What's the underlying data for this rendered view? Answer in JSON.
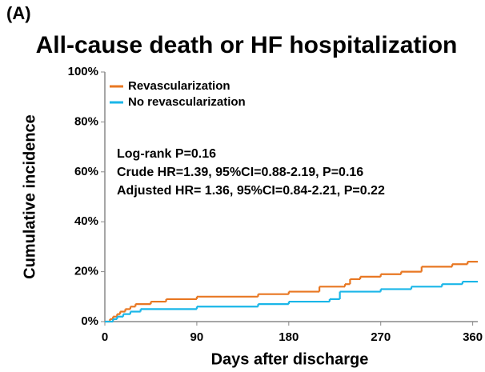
{
  "chart_data": {
    "type": "step",
    "panel_label": "(A)",
    "title": "All-cause death or HF hospitalization",
    "xlabel": "Days after discharge",
    "ylabel": "Cumulative incidence",
    "annotations": [
      "Log-rank P=0.16",
      "Crude HR=1.39, 95%CI=0.88-2.19, P=0.16",
      "Adjusted HR= 1.36, 95%CI=0.84-2.21, P=0.22"
    ],
    "legend": "upper left",
    "xlim": [
      0,
      365
    ],
    "xticks": [
      0,
      90,
      180,
      270,
      360
    ],
    "ylim": [
      0,
      100
    ],
    "yticks": [
      {
        "value": 0,
        "label": "0%"
      },
      {
        "value": 20,
        "label": "20%"
      },
      {
        "value": 40,
        "label": "40%"
      },
      {
        "value": 60,
        "label": "60%"
      },
      {
        "value": 80,
        "label": "80%"
      },
      {
        "value": 100,
        "label": "100%"
      }
    ],
    "series": [
      {
        "name": "Revascularization",
        "color": "#e87722",
        "x": [
          0,
          5,
          8,
          12,
          15,
          20,
          25,
          30,
          45,
          60,
          90,
          150,
          180,
          210,
          235,
          240,
          250,
          270,
          290,
          310,
          340,
          355,
          365
        ],
        "values": [
          0,
          1,
          2,
          3,
          4,
          5,
          6,
          7,
          8,
          9,
          10,
          11,
          12,
          14,
          15,
          17,
          18,
          19,
          20,
          22,
          23,
          24,
          24
        ]
      },
      {
        "name": "No revascularization",
        "color": "#1ab6e8",
        "x": [
          0,
          8,
          12,
          18,
          25,
          35,
          90,
          150,
          180,
          220,
          230,
          270,
          300,
          330,
          350,
          365
        ],
        "values": [
          0,
          1,
          2,
          3,
          4,
          5,
          6,
          7,
          8,
          9,
          12,
          13,
          14,
          15,
          16,
          16
        ]
      }
    ]
  }
}
